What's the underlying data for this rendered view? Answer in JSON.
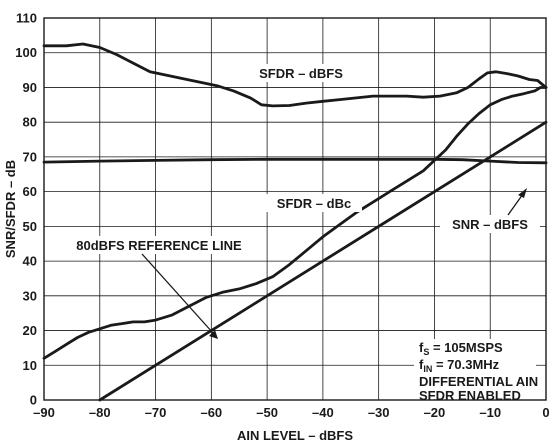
{
  "chart_data": {
    "type": "line",
    "xlabel": "AIN LEVEL – dBFS",
    "ylabel": "SNR/SFDR – dB",
    "xlim": [
      -90,
      0
    ],
    "ylim": [
      0,
      110
    ],
    "xticks": [
      -90,
      -80,
      -70,
      -60,
      -50,
      -40,
      -30,
      -20,
      -10,
      0
    ],
    "yticks": [
      0,
      10,
      20,
      30,
      40,
      50,
      60,
      70,
      80,
      90,
      100,
      110
    ],
    "grid": true,
    "series": [
      {
        "name": "SFDR – dBFS",
        "x": [
          -90,
          -86,
          -83,
          -80,
          -77,
          -74,
          -71,
          -68,
          -65,
          -62,
          -59,
          -56,
          -53,
          -51,
          -49,
          -46,
          -43,
          -40,
          -37,
          -34,
          -31,
          -28,
          -25,
          -22,
          -19,
          -16,
          -14,
          -12,
          -10.5,
          -9,
          -7,
          -5,
          -3,
          -1.5,
          0
        ],
        "y": [
          102,
          102,
          102.5,
          101.5,
          99.5,
          97,
          94.5,
          93.5,
          92.5,
          91.5,
          90.5,
          89,
          87,
          85,
          84.7,
          84.8,
          85.5,
          86,
          86.5,
          87,
          87.5,
          87.5,
          87.5,
          87.2,
          87.5,
          88.5,
          90,
          92.5,
          94.2,
          94.5,
          94,
          93.3,
          92.3,
          92,
          90
        ]
      },
      {
        "name": "SNR – dBFS",
        "x": [
          -90,
          -80,
          -70,
          -60,
          -50,
          -40,
          -30,
          -20,
          -15,
          -10,
          -5,
          0
        ],
        "y": [
          68.5,
          68.8,
          69,
          69.2,
          69.3,
          69.3,
          69.3,
          69.3,
          69.2,
          68.8,
          68.4,
          68.3
        ]
      },
      {
        "name": "SFDR – dBc",
        "x": [
          -90,
          -88,
          -86,
          -84,
          -82,
          -80,
          -78,
          -76,
          -74,
          -72,
          -70,
          -67,
          -64,
          -61,
          -58,
          -55,
          -52,
          -49,
          -46,
          -43,
          -40,
          -37,
          -34,
          -31,
          -28,
          -25,
          -22,
          -20,
          -18,
          -16,
          -14,
          -12,
          -10,
          -8,
          -6,
          -4,
          -2,
          -1,
          0
        ],
        "y": [
          12,
          14,
          16,
          18,
          19.5,
          20.5,
          21.5,
          22,
          22.5,
          22.5,
          23,
          24.5,
          27,
          29.5,
          31,
          32,
          33.5,
          35.5,
          39,
          43,
          47,
          50.5,
          54,
          57,
          60,
          63,
          66,
          69,
          72,
          76,
          79.5,
          82.5,
          85,
          86.5,
          87.5,
          88.2,
          89,
          90,
          90
        ]
      },
      {
        "name": "80dBFS REFERENCE LINE",
        "x": [
          -80,
          0
        ],
        "y": [
          0,
          80
        ]
      }
    ],
    "annotations": {
      "sfdr_dbfs": "SFDR – dBFS",
      "sfdr_dbc": "SFDR – dBc",
      "snr_dbfs": "SNR – dBFS",
      "ref_line": "80dBFS REFERENCE LINE",
      "fs_main": "f",
      "fs_sub": "S",
      "fs_rest": " = 105MSPS",
      "fin_main": "f",
      "fin_sub": "IN",
      "fin_rest": " = 70.3MHz",
      "cond1": "DIFFERENTIAL AIN",
      "cond2": "SFDR ENABLED"
    }
  }
}
